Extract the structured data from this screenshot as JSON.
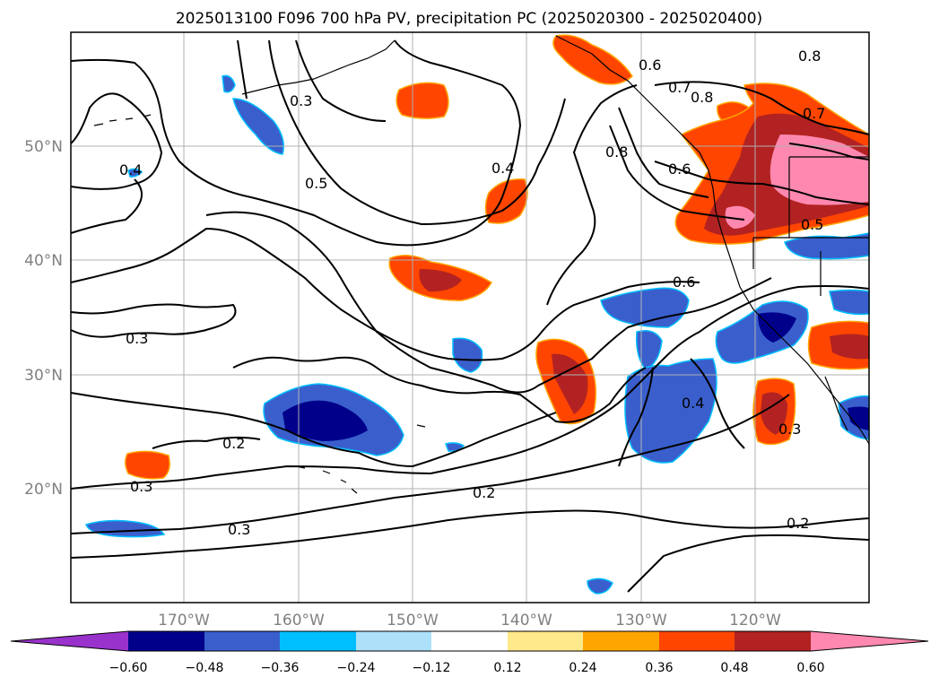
{
  "title": "2025013100 F096 700 hPa PV, precipitation PC (2025020300 - 2025020400)",
  "map": {
    "lon_range": [
      -180,
      -110
    ],
    "lat_range": [
      10,
      60
    ],
    "lat_labels": [
      "50°N",
      "40°N",
      "30°N",
      "20°N"
    ],
    "lon_labels": [
      "170°W",
      "160°W",
      "150°W",
      "140°W",
      "130°W",
      "120°W"
    ],
    "contour_labels": [
      "0.6",
      "0.7",
      "0.8",
      "0.8",
      "0.7",
      "0.8",
      "0.6",
      "0.5",
      "0.4",
      "0.5",
      "0.4",
      "0.3",
      "0.6",
      "0.3",
      "0.3",
      "0.2",
      "0.2",
      "0.3",
      "0.2",
      "0.4",
      "0.3"
    ]
  },
  "colorbar": {
    "ticks": [
      "−0.60",
      "−0.48",
      "−0.36",
      "−0.24",
      "−0.12",
      "0.12",
      "0.24",
      "0.36",
      "0.48",
      "0.60"
    ],
    "colors": [
      "#9932CC",
      "#00008B",
      "#3A5FCD",
      "#00BFFF",
      "#ADE1FA",
      "#FFFFFF",
      "#FFE98A",
      "#FFA500",
      "#FF4500",
      "#B22222",
      "#FF88B0"
    ]
  }
}
